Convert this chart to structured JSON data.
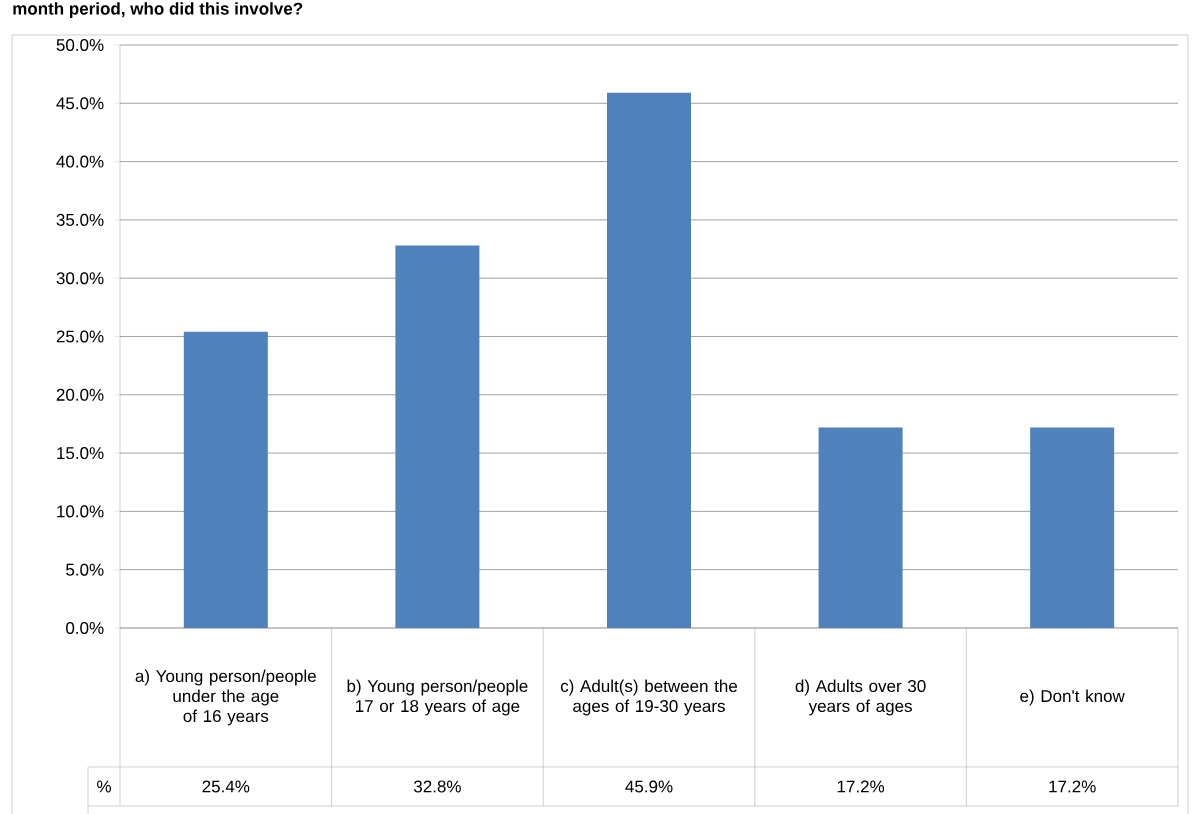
{
  "chart_data": {
    "type": "bar",
    "title": "month period, who did this involve?",
    "categories": [
      "a) Young person/people under the age of 16 years",
      "b) Young person/people 17 or 18 years of age",
      "c) Adult(s) between the ages of 19-30 years",
      "d) Adults over 30 years of ages",
      "e) Don't know"
    ],
    "series": [
      {
        "name": "%",
        "color": "#4f81bd",
        "values": [
          25.4,
          32.8,
          45.9,
          17.2,
          17.2
        ],
        "value_labels": [
          "25.4%",
          "32.8%",
          "45.9%",
          "17.2%",
          "17.2%"
        ]
      }
    ],
    "ylim": [
      0,
      50
    ],
    "yticks": [
      {
        "value": 0,
        "label": "0.0%"
      },
      {
        "value": 5,
        "label": "5.0%"
      },
      {
        "value": 10,
        "label": "10.0%"
      },
      {
        "value": 15,
        "label": "15.0%"
      },
      {
        "value": 20,
        "label": "20.0%"
      },
      {
        "value": 25,
        "label": "25.0%"
      },
      {
        "value": 30,
        "label": "30.0%"
      },
      {
        "value": 35,
        "label": "35.0%"
      },
      {
        "value": 40,
        "label": "40.0%"
      },
      {
        "value": 45,
        "label": "45.0%"
      },
      {
        "value": 50,
        "label": "50.0%"
      }
    ],
    "grid": "y"
  }
}
